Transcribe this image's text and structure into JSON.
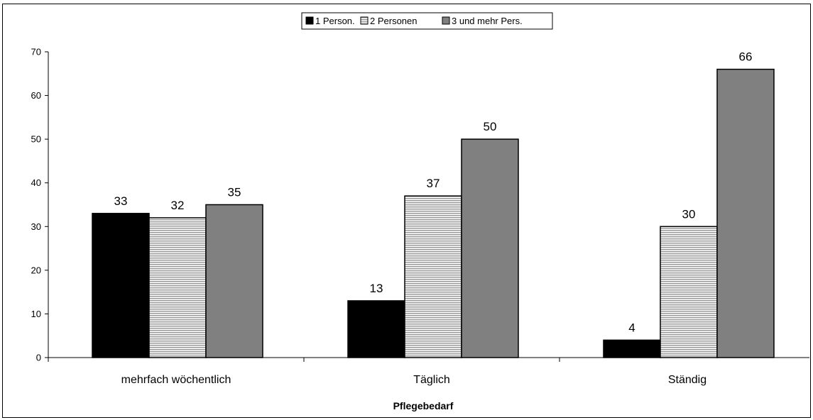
{
  "chart_data": {
    "type": "bar",
    "title": "",
    "xlabel": "Pflegebedarf",
    "ylabel": "",
    "ylim": [
      0,
      70
    ],
    "yticks": [
      0,
      10,
      20,
      30,
      40,
      50,
      60,
      70
    ],
    "categories": [
      "mehrfach wöchentlich",
      "Täglich",
      "Ständig"
    ],
    "series": [
      {
        "name": "1 Person.",
        "values": [
          33,
          13,
          4
        ],
        "color": "#000000",
        "pattern": "solid"
      },
      {
        "name": "2 Personen",
        "values": [
          32,
          37,
          30
        ],
        "color": "#c8c8c8",
        "pattern": "horizontal-lines"
      },
      {
        "name": "3 und mehr Pers.",
        "values": [
          35,
          50,
          66
        ],
        "color": "#808080",
        "pattern": "solid"
      }
    ],
    "data_labels": true,
    "legend_position": "top",
    "grid": false
  }
}
